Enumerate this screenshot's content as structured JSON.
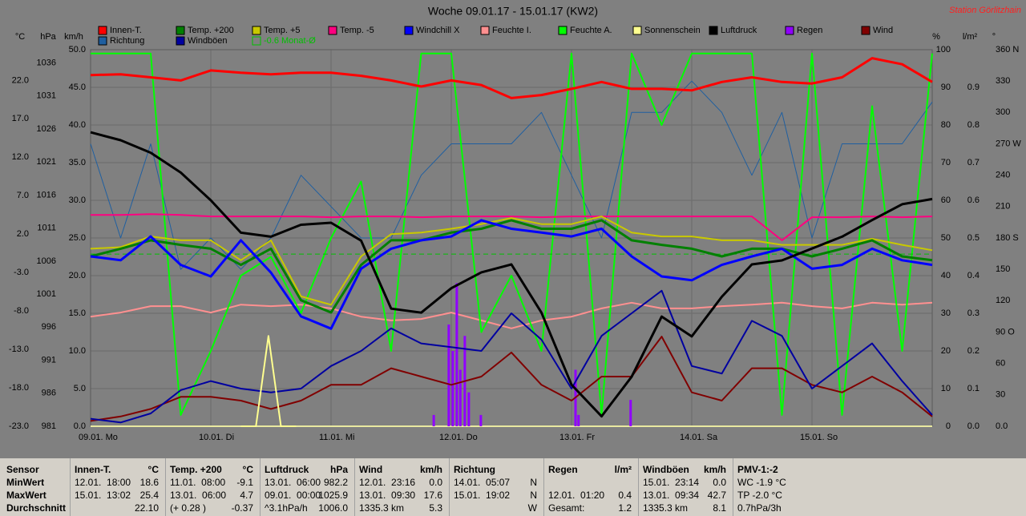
{
  "chart_data": {
    "type": "line",
    "title": "Woche 09.01.17 - 15.01.17 (KW2)",
    "station": "Station Görlitzhain",
    "grid": true,
    "xlim": [
      0,
      168
    ],
    "xticks": [
      {
        "value": 0,
        "label": "09.01. Mo"
      },
      {
        "value": 24,
        "label": "10.01. Di"
      },
      {
        "value": 48,
        "label": "11.01. Mi"
      },
      {
        "value": 72,
        "label": "12.01. Do"
      },
      {
        "value": 96,
        "label": "13.01. Fr"
      },
      {
        "value": 120,
        "label": "14.01. Sa"
      },
      {
        "value": 144,
        "label": "15.01. So"
      }
    ],
    "x": [
      0,
      6,
      12,
      18,
      24,
      30,
      36,
      42,
      48,
      54,
      60,
      66,
      72,
      78,
      84,
      90,
      96,
      102,
      108,
      114,
      120,
      126,
      132,
      138,
      144,
      150,
      156,
      162,
      168
    ],
    "axes": [
      {
        "name": "°C",
        "ylim": [
          -23,
          26
        ],
        "yticks": [
          {
            "value": 22,
            "label": "22.0"
          },
          {
            "value": 17,
            "label": "17.0"
          },
          {
            "value": 12,
            "label": "12.0"
          },
          {
            "value": 7,
            "label": "7.0"
          },
          {
            "value": 2,
            "label": "2.0"
          },
          {
            "value": -3,
            "label": "-3.0"
          },
          {
            "value": -8,
            "label": "-8.0"
          },
          {
            "value": -13,
            "label": "-13.0"
          },
          {
            "value": -18,
            "label": "-18.0"
          },
          {
            "value": -23,
            "label": "-23.0"
          }
        ]
      },
      {
        "name": "hPa",
        "ylim": [
          981,
          1038
        ],
        "yticks": [
          1036,
          1031,
          1026,
          1021,
          1016,
          1011,
          1006,
          1001,
          996,
          991,
          986,
          981
        ]
      },
      {
        "name": "km/h",
        "ylim": [
          0,
          50
        ],
        "yticks": [
          {
            "value": 50,
            "label": "50.0"
          },
          {
            "value": 45,
            "label": "45.0"
          },
          {
            "value": 40,
            "label": "40.0"
          },
          {
            "value": 35,
            "label": "35.0"
          },
          {
            "value": 30,
            "label": "30.0"
          },
          {
            "value": 25,
            "label": "25.0"
          },
          {
            "value": 20,
            "label": "20.0"
          },
          {
            "value": 15,
            "label": "15.0"
          },
          {
            "value": 10,
            "label": "10.0"
          },
          {
            "value": 5,
            "label": "5.0"
          },
          {
            "value": 0,
            "label": "0.0"
          }
        ]
      },
      {
        "name": "%",
        "ylim": [
          0,
          100
        ],
        "yticks": [
          100,
          90,
          80,
          70,
          60,
          50,
          40,
          30,
          20,
          10,
          0
        ]
      },
      {
        "name": "l/m²",
        "ylim": [
          0,
          1
        ],
        "yticks": [
          0.9,
          0.8,
          0.7,
          0.6,
          0.5,
          0.4,
          0.3,
          0.2,
          0.1,
          {
            "value": 0,
            "label": "0.0"
          }
        ]
      },
      {
        "name": "°",
        "ylim": [
          0,
          360
        ],
        "yticks": [
          {
            "value": 360,
            "label": "360 N"
          },
          330,
          300,
          {
            "value": 270,
            "label": "270 W"
          },
          240,
          210,
          {
            "value": 180,
            "label": "180 S"
          },
          150,
          120,
          {
            "value": 90,
            "label": "90 O"
          },
          60,
          30,
          {
            "value": 0,
            "label": "0.0"
          }
        ]
      }
    ],
    "series": [
      {
        "name": "Innen-T.",
        "color": "#ff0000",
        "axis": 0,
        "values": [
          22.7,
          22.8,
          22.4,
          22.0,
          23.3,
          23.0,
          22.8,
          23.0,
          23.0,
          22.6,
          22.0,
          21.2,
          22.0,
          21.4,
          19.7,
          20.1,
          20.9,
          21.8,
          20.9,
          20.9,
          20.7,
          21.8,
          22.4,
          21.8,
          21.6,
          22.4,
          24.9,
          24.1,
          21.8
        ]
      },
      {
        "name": "Richtung",
        "color": "#1f5fa0",
        "axis": 5,
        "values": [
          270,
          180,
          270,
          150,
          180,
          150,
          180,
          240,
          210,
          180,
          180,
          240,
          270,
          270,
          270,
          300,
          240,
          180,
          300,
          300,
          330,
          300,
          240,
          300,
          180,
          270,
          270,
          270,
          310
        ]
      },
      {
        "name": "Temp. +200",
        "color": "#008000",
        "axis": 0,
        "values": [
          -0.9,
          0.1,
          1.2,
          0.6,
          0.1,
          -2.0,
          0.1,
          -6.6,
          -8.2,
          -2.0,
          1.2,
          1.2,
          2.2,
          2.7,
          3.8,
          2.7,
          2.7,
          3.8,
          1.2,
          0.6,
          0.1,
          -0.9,
          0.1,
          0.1,
          -0.9,
          0.1,
          1.2,
          -0.9,
          -1.4
        ]
      },
      {
        "name": "Windböen",
        "color": "#0000a0",
        "axis": 2,
        "values": [
          1.0,
          0.5,
          1.7,
          4.8,
          6.0,
          5.0,
          4.5,
          5.0,
          8.0,
          10.0,
          13.0,
          11.0,
          10.5,
          10.0,
          15.0,
          11.5,
          5.0,
          12.0,
          15.0,
          18.0,
          8.0,
          7.0,
          14.0,
          12.0,
          5.0,
          8.0,
          11.0,
          6.0,
          1.5
        ]
      },
      {
        "name": "Temp. +5",
        "color": "#c8c800",
        "axis": 0,
        "values": [
          0.1,
          0.3,
          1.7,
          1.2,
          1.2,
          -1.4,
          1.2,
          -6.1,
          -7.2,
          -0.9,
          2.0,
          2.2,
          2.7,
          3.3,
          4.1,
          3.3,
          3.3,
          4.3,
          2.2,
          1.7,
          1.7,
          1.2,
          1.2,
          0.6,
          0.6,
          0.6,
          1.4,
          0.6,
          -0.1
        ]
      },
      {
        "name": "-0.6 Monat-Ø",
        "color": "#00c000",
        "axis": 0,
        "level": -0.6
      },
      {
        "name": "Temp. -5",
        "color": "#ff0080",
        "axis": 0,
        "values": [
          4.5,
          4.5,
          4.6,
          4.5,
          4.3,
          4.3,
          4.3,
          4.3,
          4.2,
          4.3,
          4.3,
          4.2,
          4.3,
          4.3,
          4.3,
          4.2,
          4.3,
          4.3,
          4.3,
          4.3,
          4.3,
          4.3,
          4.3,
          1.2,
          4.2,
          4.2,
          4.3,
          4.2,
          4.3
        ]
      },
      {
        "name": "Windchill X",
        "color": "#0000ff",
        "axis": 0,
        "values": [
          -0.9,
          -1.4,
          1.7,
          -2.0,
          -3.5,
          1.2,
          -3.0,
          -8.7,
          -10.3,
          -2.5,
          0.1,
          1.2,
          1.7,
          3.8,
          2.7,
          2.2,
          1.7,
          2.7,
          -0.9,
          -3.5,
          -4.0,
          -2.0,
          -0.9,
          0.1,
          -2.5,
          -2.0,
          0.1,
          -1.4,
          -2.0
        ]
      },
      {
        "name": "Feuchte I.",
        "color": "#ff9090",
        "axis": 3,
        "values": [
          29.1,
          30.2,
          31.9,
          31.9,
          30.2,
          32.3,
          31.9,
          32.3,
          31.3,
          29.1,
          28.1,
          28.5,
          30.2,
          28.1,
          26.0,
          28.1,
          29.1,
          31.3,
          32.8,
          31.3,
          31.3,
          31.9,
          32.3,
          32.8,
          31.9,
          31.3,
          32.8,
          32.3,
          32.8
        ]
      },
      {
        "name": "Feuchte A.",
        "color": "#00ff00",
        "axis": 3,
        "values": [
          99,
          99,
          99,
          3,
          20,
          40,
          45,
          30,
          50,
          65,
          20,
          99,
          99,
          25,
          40,
          20,
          99,
          3,
          99,
          80,
          99,
          99,
          99,
          3,
          99,
          3,
          85,
          20,
          99
        ]
      },
      {
        "name": "Sonnenschein",
        "color": "#ffff90",
        "axis": 3,
        "x": [
          30,
          33,
          35.5,
          38,
          41
        ],
        "values": [
          0,
          0,
          24,
          0,
          0
        ]
      },
      {
        "name": "Luftdruck",
        "color": "#000000",
        "axis": 1,
        "values": [
          1025.5,
          1024.3,
          1022.4,
          1019.4,
          1015.2,
          1010.3,
          1009.7,
          1011.5,
          1011.8,
          1009.1,
          998.8,
          998.2,
          1001.9,
          1004.3,
          1005.5,
          998.2,
          987.3,
          982.5,
          988.5,
          997.6,
          994.6,
          1000.6,
          1005.5,
          1006.1,
          1007.9,
          1009.7,
          1012.2,
          1014.6,
          1015.4
        ]
      },
      {
        "name": "Regen",
        "color": "#9000ff",
        "axis": 4,
        "type": "bar",
        "x": [
          68.5,
          71.5,
          72.3,
          73.1,
          73.8,
          74.7,
          75.5,
          77.9,
          96.8,
          97.4,
          107.8
        ],
        "values": [
          0.03,
          0.27,
          0.2,
          0.38,
          0.15,
          0.24,
          0.09,
          0.03,
          0.15,
          0.03,
          0.07
        ]
      },
      {
        "name": "Wind",
        "color": "#800000",
        "axis": 2,
        "values": [
          0.7,
          1.3,
          2.3,
          3.9,
          3.9,
          3.4,
          2.3,
          3.4,
          5.5,
          5.5,
          7.7,
          6.6,
          5.5,
          6.6,
          9.8,
          5.5,
          3.4,
          6.6,
          6.6,
          11.9,
          4.5,
          3.4,
          7.7,
          7.7,
          5.5,
          4.5,
          6.6,
          4.5,
          1.3
        ]
      }
    ]
  },
  "stats": {
    "labels": [
      "Sensor",
      "MinWert",
      "MaxWert",
      "Durchschnitt"
    ],
    "columns": [
      {
        "name": "Innen-T.",
        "unit": "°C",
        "rows": [
          [
            "12.01.  18:00",
            "18.6"
          ],
          [
            "15.01.  13:02",
            "25.4"
          ],
          [
            null,
            "22.10"
          ]
        ]
      },
      {
        "name": "Temp. +200",
        "unit": "°C",
        "rows": [
          [
            "11.01.  08:00",
            "-9.1"
          ],
          [
            "13.01.  06:00",
            "4.7"
          ],
          [
            "(+ 0.28 )",
            "-0.37"
          ]
        ]
      },
      {
        "name": "Luftdruck",
        "unit": "hPa",
        "rows": [
          [
            "13.01.  06:00",
            "982.2"
          ],
          [
            "09.01.  00:00",
            "1025.9"
          ],
          [
            "^3.1hPa/h",
            "1006.0"
          ]
        ]
      },
      {
        "name": "Wind",
        "unit": "km/h",
        "rows": [
          [
            "12.01.  23:16",
            "0.0"
          ],
          [
            "13.01.  09:30",
            "17.6"
          ],
          [
            "1335.3 km",
            "5.3"
          ]
        ]
      },
      {
        "name": "Richtung",
        "unit": null,
        "rows": [
          [
            "14.01.  05:07",
            "N"
          ],
          [
            "15.01.  19:02",
            "N"
          ],
          [
            null,
            "W"
          ]
        ]
      },
      {
        "name": "Regen",
        "unit": "l/m²",
        "rows": [
          [
            null,
            null
          ],
          [
            "12.01.  01:20",
            "0.4"
          ],
          [
            "Gesamt:",
            "1.2"
          ]
        ]
      },
      {
        "name": "Windböen",
        "unit": "km/h",
        "rows": [
          [
            "15.01.  23:14",
            "0.0"
          ],
          [
            "13.01.  09:34",
            "42.7"
          ],
          [
            "1335.3 km",
            "8.1"
          ]
        ]
      },
      {
        "name": "PMV-1:-2",
        "unit": null,
        "rows": [
          [
            "WC -1.9 °C",
            null
          ],
          [
            "TP -2.0 °C",
            null
          ],
          [
            "0.7hPa/3h",
            null
          ]
        ]
      }
    ]
  }
}
